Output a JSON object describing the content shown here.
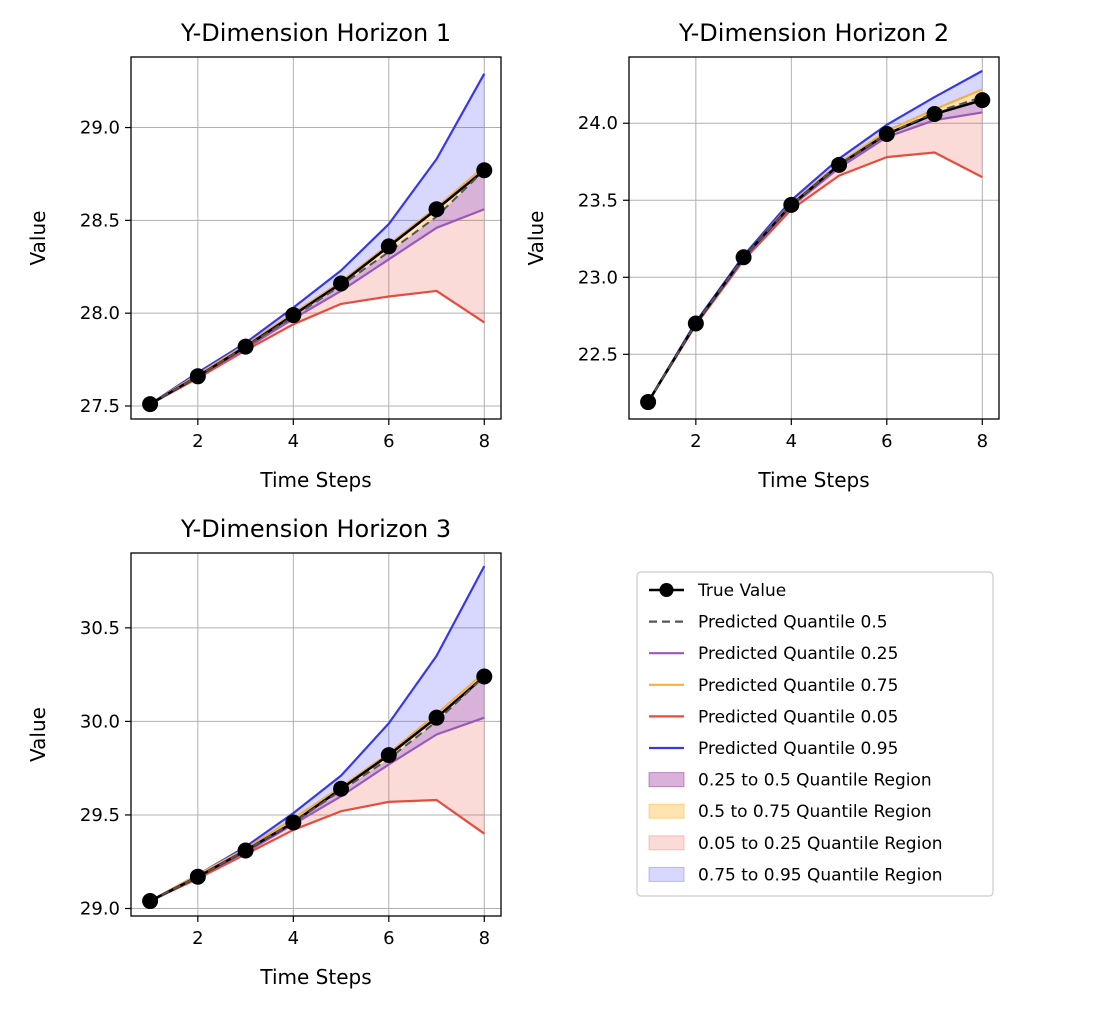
{
  "chart_data": [
    {
      "type": "line",
      "title": "Y-Dimension Horizon 1",
      "xlabel": "Time Steps",
      "ylabel": "Value",
      "x": [
        1,
        2,
        3,
        4,
        5,
        6,
        7,
        8
      ],
      "xlim": [
        0.6,
        8.35
      ],
      "ylim": [
        27.43,
        29.38
      ],
      "xticks": [
        2,
        4,
        6,
        8
      ],
      "yticks": [
        27.5,
        28.0,
        28.5,
        29.0
      ],
      "ytick_labels": [
        "27.5",
        "28.0",
        "28.5",
        "29.0"
      ],
      "grid": true,
      "series": [
        {
          "name": "True Value",
          "values": [
            27.51,
            27.66,
            27.82,
            27.99,
            28.16,
            28.36,
            28.56,
            28.77
          ]
        },
        {
          "name": "Predicted Quantile 0.5",
          "values": [
            27.51,
            27.66,
            27.82,
            27.98,
            28.15,
            28.33,
            28.52,
            28.77
          ]
        },
        {
          "name": "Predicted Quantile 0.25",
          "values": [
            27.51,
            27.66,
            27.81,
            27.97,
            28.12,
            28.29,
            28.46,
            28.56
          ]
        },
        {
          "name": "Predicted Quantile 0.75",
          "values": [
            27.51,
            27.67,
            27.83,
            28.0,
            28.17,
            28.37,
            28.57,
            28.79
          ]
        },
        {
          "name": "Predicted Quantile 0.05",
          "values": [
            27.51,
            27.65,
            27.8,
            27.94,
            28.05,
            28.09,
            28.12,
            27.95
          ]
        },
        {
          "name": "Predicted Quantile 0.95",
          "values": [
            27.51,
            27.68,
            27.84,
            28.03,
            28.23,
            28.48,
            28.83,
            29.29
          ]
        }
      ]
    },
    {
      "type": "line",
      "title": "Y-Dimension Horizon 2",
      "xlabel": "Time Steps",
      "ylabel": "Value",
      "x": [
        1,
        2,
        3,
        4,
        5,
        6,
        7,
        8
      ],
      "xlim": [
        0.6,
        8.35
      ],
      "ylim": [
        22.08,
        24.43
      ],
      "xticks": [
        2,
        4,
        6,
        8
      ],
      "yticks": [
        22.5,
        23.0,
        23.5,
        24.0
      ],
      "ytick_labels": [
        "22.5",
        "23.0",
        "23.5",
        "24.0"
      ],
      "grid": true,
      "series": [
        {
          "name": "True Value",
          "values": [
            22.19,
            22.7,
            23.13,
            23.47,
            23.73,
            23.93,
            24.06,
            24.15
          ]
        },
        {
          "name": "Predicted Quantile 0.5",
          "values": [
            22.19,
            22.7,
            23.13,
            23.47,
            23.73,
            23.93,
            24.07,
            24.17
          ]
        },
        {
          "name": "Predicted Quantile 0.25",
          "values": [
            22.19,
            22.7,
            23.12,
            23.46,
            23.71,
            23.91,
            24.02,
            24.07
          ]
        },
        {
          "name": "Predicted Quantile 0.75",
          "values": [
            22.19,
            22.7,
            23.13,
            23.48,
            23.74,
            23.95,
            24.09,
            24.22
          ]
        },
        {
          "name": "Predicted Quantile 0.05",
          "values": [
            22.19,
            22.69,
            23.11,
            23.44,
            23.66,
            23.78,
            23.81,
            23.65
          ]
        },
        {
          "name": "Predicted Quantile 0.95",
          "values": [
            22.19,
            22.71,
            23.14,
            23.5,
            23.77,
            23.99,
            24.17,
            24.34
          ]
        }
      ]
    },
    {
      "type": "line",
      "title": "Y-Dimension Horizon 3",
      "xlabel": "Time Steps",
      "ylabel": "Value",
      "x": [
        1,
        2,
        3,
        4,
        5,
        6,
        7,
        8
      ],
      "xlim": [
        0.6,
        8.35
      ],
      "ylim": [
        28.96,
        30.9
      ],
      "xticks": [
        2,
        4,
        6,
        8
      ],
      "yticks": [
        29.0,
        29.5,
        30.0,
        30.5
      ],
      "ytick_labels": [
        "29.0",
        "29.5",
        "30.0",
        "30.5"
      ],
      "grid": true,
      "series": [
        {
          "name": "True Value",
          "values": [
            29.04,
            29.17,
            29.31,
            29.46,
            29.64,
            29.82,
            30.02,
            30.24
          ]
        },
        {
          "name": "Predicted Quantile 0.5",
          "values": [
            29.04,
            29.17,
            29.31,
            29.46,
            29.63,
            29.8,
            30.0,
            30.24
          ]
        },
        {
          "name": "Predicted Quantile 0.25",
          "values": [
            29.04,
            29.17,
            29.3,
            29.45,
            29.6,
            29.77,
            29.93,
            30.02
          ]
        },
        {
          "name": "Predicted Quantile 0.75",
          "values": [
            29.04,
            29.18,
            29.32,
            29.48,
            29.65,
            29.83,
            30.04,
            30.26
          ]
        },
        {
          "name": "Predicted Quantile 0.05",
          "values": [
            29.04,
            29.16,
            29.29,
            29.42,
            29.52,
            29.57,
            29.58,
            29.4
          ]
        },
        {
          "name": "Predicted Quantile 0.95",
          "values": [
            29.04,
            29.18,
            29.33,
            29.51,
            29.71,
            29.99,
            30.35,
            30.83
          ]
        }
      ]
    }
  ],
  "legend": {
    "placement": "lower-right",
    "items": [
      {
        "label": "True Value",
        "kind": "line-marker",
        "color": "#000000"
      },
      {
        "label": "Predicted Quantile 0.5",
        "kind": "dashed",
        "color": "#555555"
      },
      {
        "label": "Predicted Quantile 0.25",
        "kind": "line",
        "color": "#9b59b6"
      },
      {
        "label": "Predicted Quantile 0.75",
        "kind": "line",
        "color": "#f5b041"
      },
      {
        "label": "Predicted Quantile 0.05",
        "kind": "line",
        "color": "#e74c3c"
      },
      {
        "label": "Predicted Quantile 0.95",
        "kind": "line",
        "color": "#3838e8"
      },
      {
        "label": "0.25 to 0.5 Quantile Region",
        "kind": "patch",
        "color": "#800080",
        "alpha": 0.3
      },
      {
        "label": "0.5 to 0.75 Quantile Region",
        "kind": "patch",
        "color": "#ffa500",
        "alpha": 0.3
      },
      {
        "label": "0.05 to 0.25 Quantile Region",
        "kind": "patch",
        "color": "#e74c3c",
        "alpha": 0.2
      },
      {
        "label": "0.75 to 0.95 Quantile Region",
        "kind": "patch",
        "color": "#3b3bff",
        "alpha": 0.2
      }
    ]
  },
  "colors": {
    "true_value": "#000000",
    "q50": "#555555",
    "q25": "#9b59b6",
    "q75": "#f5b041",
    "q05": "#e74c3c",
    "q95": "#3838e8",
    "region_25_50": "#800080",
    "region_50_75": "#ffa500",
    "region_05_25": "#e74c3c",
    "region_75_95": "#3b3bff",
    "grid": "#b0b0b0"
  }
}
